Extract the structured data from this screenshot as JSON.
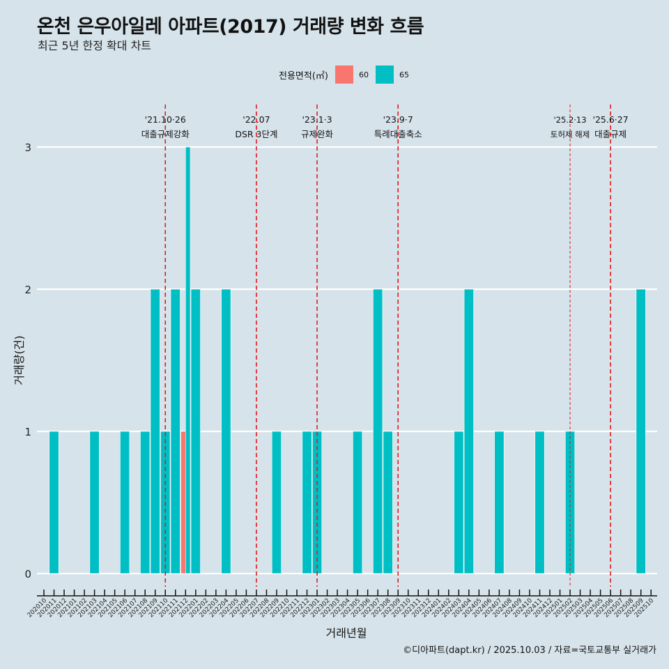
{
  "header": {
    "title": "온천 은우아일레 아파트(2017) 거래량 변화 흐름",
    "subtitle": "최근 5년 한정 확대 차트"
  },
  "legend": {
    "title": "전용면적(㎡)",
    "items": [
      {
        "label": "60",
        "color": "#F8766D"
      },
      {
        "label": "65",
        "color": "#00BFC4"
      }
    ]
  },
  "caption": "©디아파트(dapt.kr) / 2025.10.03 / 자료=국토교통부 실거래가",
  "chart_data": {
    "type": "bar",
    "title": "온천 은우아일레 아파트(2017) 거래량 변화 흐름",
    "subtitle": "최근 5년 한정 확대 차트",
    "xlabel": "거래년월",
    "ylabel": "거래량(건)",
    "ylim": [
      0,
      3
    ],
    "yticks": [
      0,
      1,
      2,
      3
    ],
    "grid": true,
    "legend_position": "top",
    "categories": [
      "202010",
      "202011",
      "202012",
      "202101",
      "202102",
      "202103",
      "202104",
      "202105",
      "202106",
      "202107",
      "202108",
      "202109",
      "202110",
      "202111",
      "202112",
      "202201",
      "202202",
      "202203",
      "202204",
      "202205",
      "202206",
      "202207",
      "202208",
      "202209",
      "202210",
      "202211",
      "202212",
      "202301",
      "202302",
      "202303",
      "202304",
      "202305",
      "202306",
      "202307",
      "202308",
      "202309",
      "202310",
      "202311",
      "202312",
      "202401",
      "202402",
      "202403",
      "202404",
      "202405",
      "202406",
      "202407",
      "202408",
      "202409",
      "202410",
      "202411",
      "202412",
      "202501",
      "202502",
      "202503",
      "202504",
      "202505",
      "202506",
      "202507",
      "202508",
      "202509",
      "202510"
    ],
    "series": [
      {
        "name": "60",
        "color": "#F8766D",
        "points": [
          {
            "x": "202112",
            "y": 1
          }
        ]
      },
      {
        "name": "65",
        "color": "#00BFC4",
        "points": [
          {
            "x": "202011",
            "y": 1
          },
          {
            "x": "202103",
            "y": 1
          },
          {
            "x": "202106",
            "y": 1
          },
          {
            "x": "202108",
            "y": 1
          },
          {
            "x": "202109",
            "y": 2
          },
          {
            "x": "202110",
            "y": 1
          },
          {
            "x": "202111",
            "y": 2
          },
          {
            "x": "202112",
            "y": 3
          },
          {
            "x": "202201",
            "y": 2
          },
          {
            "x": "202204",
            "y": 2
          },
          {
            "x": "202209",
            "y": 1
          },
          {
            "x": "202212",
            "y": 1
          },
          {
            "x": "202301",
            "y": 1
          },
          {
            "x": "202305",
            "y": 1
          },
          {
            "x": "202307",
            "y": 2
          },
          {
            "x": "202308",
            "y": 1
          },
          {
            "x": "202403",
            "y": 1
          },
          {
            "x": "202404",
            "y": 2
          },
          {
            "x": "202407",
            "y": 1
          },
          {
            "x": "202411",
            "y": 1
          },
          {
            "x": "202502",
            "y": 1
          },
          {
            "x": "202509",
            "y": 2
          }
        ]
      }
    ],
    "annotations": [
      {
        "x": "202110",
        "line1": "'21.10·26",
        "line2": "대출규제강화",
        "style": "thick"
      },
      {
        "x": "202207",
        "line1": "'22.07",
        "line2": "DSR 3단계",
        "style": "thick"
      },
      {
        "x": "202301",
        "line1": "'23.1·3",
        "line2": "규제완화",
        "style": "thick"
      },
      {
        "x": "202309",
        "line1": "'23.9·7",
        "line2": "특례대출축소",
        "style": "thick"
      },
      {
        "x": "202502",
        "line1": "'25.2·13",
        "line2": "토허제 해제",
        "style": "thin"
      },
      {
        "x": "202506",
        "line1": "'25.6·27",
        "line2": "대출규제",
        "style": "thick"
      }
    ],
    "annotation_color": "#E41A1C"
  }
}
